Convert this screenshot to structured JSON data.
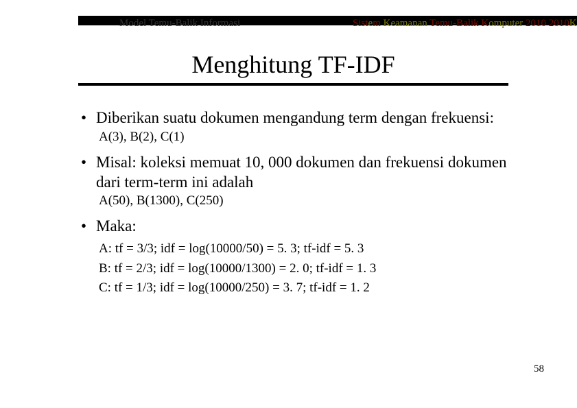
{
  "header": {
    "left": "Model Temu-Balik Informasi",
    "right_prefix_red": "Sistem Temu-Balik Komputer 2010",
    "right_olive_1": "Keamanan",
    "right_olive_2": "Informasi Informasi",
    "right_red_2": "2010",
    "right_olive_3": "Keamana"
  },
  "title": "Menghitung TF-IDF",
  "bullets": {
    "b1": {
      "text": "Diberikan suatu dokumen mengandung term dengan frekuensi:",
      "sub": "A(3), B(2), C(1)"
    },
    "b2": {
      "text": "Misal: koleksi memuat 10, 000 dokumen dan frekuensi dokumen dari term-term ini adalah",
      "sub": "A(50), B(1300), C(250)"
    },
    "b3": {
      "text": "Maka:",
      "calcA": "A: tf = 3/3; idf = log(10000/50) = 5. 3; tf-idf = 5. 3",
      "calcB": "B: tf = 2/3; idf = log(10000/1300) = 2. 0; tf-idf = 1. 3",
      "calcC": "C: tf = 1/3; idf = log(10000/250) = 3. 7; tf-idf = 1. 2"
    }
  },
  "page_number": "58"
}
